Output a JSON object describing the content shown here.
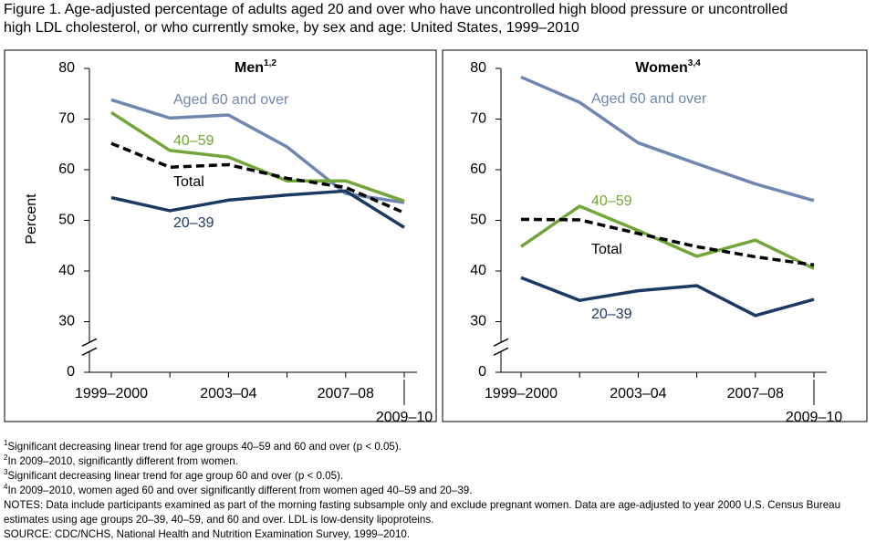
{
  "title": "Figure 1. Age-adjusted percentage of adults aged 20 and over who have uncontrolled high blood pressure or uncontrolled high LDL cholesterol, or who currently smoke, by sex and age: United States, 1999–2010",
  "chart_data": [
    {
      "type": "line",
      "title": "Men",
      "title_note": "1,2",
      "ylabel": "Percent",
      "categories": [
        "1999–2000",
        null,
        "2003–04",
        null,
        "2007–08",
        "2009–10"
      ],
      "ylim": [
        0,
        80
      ],
      "yticks": [
        0,
        30,
        40,
        50,
        60,
        70,
        80
      ],
      "axis_break": [
        0,
        30
      ],
      "series": [
        {
          "name": "Aged 60 and over",
          "color": "#6f86b0",
          "dash": false,
          "values": [
            73.8,
            70.2,
            70.8,
            64.5,
            55.3,
            53.5
          ]
        },
        {
          "name": "40–59",
          "color": "#72a63a",
          "dash": false,
          "values": [
            71.3,
            63.8,
            62.5,
            57.8,
            57.8,
            53.8
          ]
        },
        {
          "name": "Total",
          "color": "#000000",
          "dash": true,
          "values": [
            65.2,
            60.5,
            61.0,
            58.3,
            56.5,
            51.5
          ]
        },
        {
          "name": "20–39",
          "color": "#1b3a63",
          "dash": false,
          "values": [
            54.5,
            51.9,
            54.0,
            55.0,
            55.8,
            48.6
          ]
        }
      ]
    },
    {
      "type": "line",
      "title": "Women",
      "title_note": "3,4",
      "categories": [
        "1999–2000",
        null,
        "2003–04",
        null,
        "2007–08",
        "2009–10"
      ],
      "ylim": [
        0,
        80
      ],
      "yticks": [
        0,
        30,
        40,
        50,
        60,
        70,
        80
      ],
      "axis_break": [
        0,
        30
      ],
      "series": [
        {
          "name": "Aged 60 and over",
          "color": "#6f86b0",
          "dash": false,
          "values": [
            78.3,
            73.3,
            65.3,
            61.2,
            57.2,
            53.9
          ]
        },
        {
          "name": "40–59",
          "color": "#72a63a",
          "dash": false,
          "values": [
            44.8,
            52.8,
            48.0,
            42.9,
            46.1,
            40.5
          ]
        },
        {
          "name": "Total",
          "color": "#000000",
          "dash": true,
          "values": [
            50.2,
            50.1,
            47.4,
            44.8,
            42.8,
            41.2
          ]
        },
        {
          "name": "20–39",
          "color": "#1b3a63",
          "dash": false,
          "values": [
            38.7,
            34.2,
            36.1,
            37.1,
            31.2,
            34.4
          ]
        }
      ]
    }
  ],
  "footnotes": [
    {
      "mark": "1",
      "text": "Significant decreasing linear trend for age groups 40–59 and 60 and over (p < 0.05)."
    },
    {
      "mark": "2",
      "text": "In 2009–2010, significantly different from women."
    },
    {
      "mark": "3",
      "text": "Significant decreasing linear trend for age group 60 and over (p < 0.05)."
    },
    {
      "mark": "4",
      "text": "In 2009–2010, women aged 60 and over significantly different from women aged 40–59 and 20–39."
    }
  ],
  "notes": "NOTES: Data include participants examined as part of the morning fasting subsample only and exclude pregnant women. Data are age-adjusted to year 2000 U.S. Census Bureau estimates using age groups 20–39, 40–59, and 60 and over. LDL is low-density lipoproteins.",
  "source": "SOURCE: CDC/NCHS, National Health and Nutrition Examination Survey, 1999–2010."
}
